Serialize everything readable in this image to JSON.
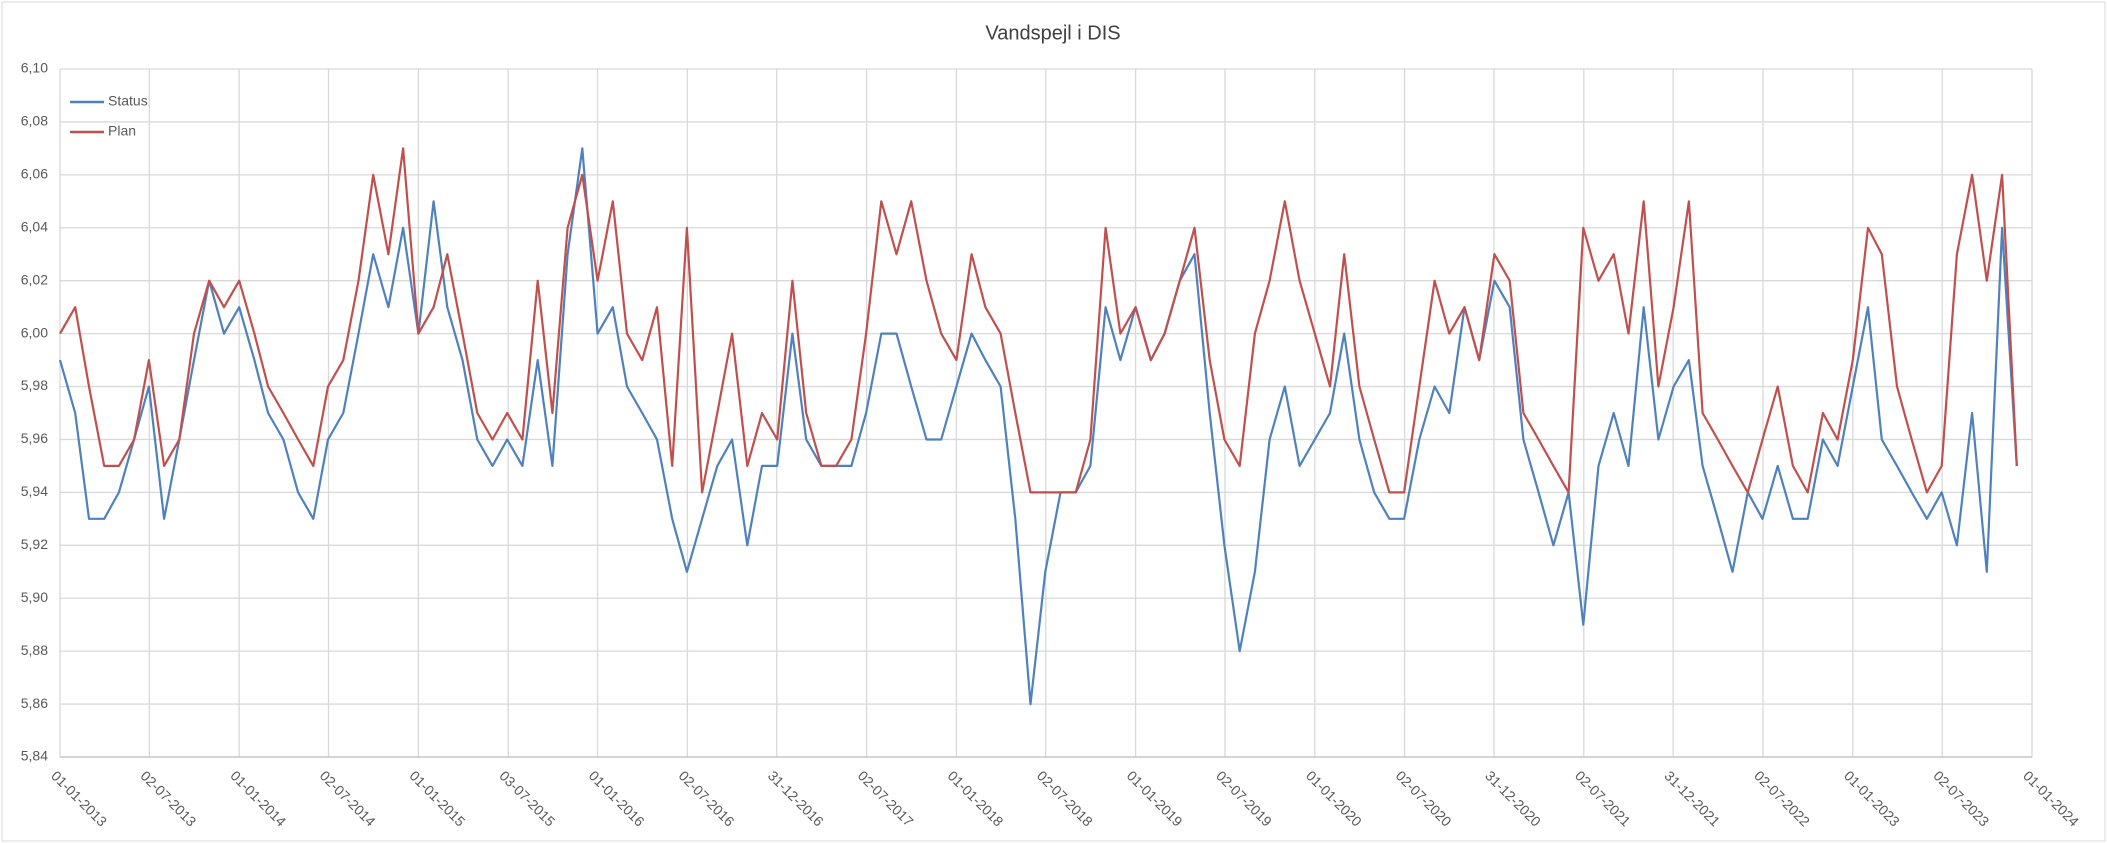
{
  "chart_data": {
    "type": "line",
    "title": "Vandspejl  i DIS",
    "x": [
      "2013-01-01",
      "2013-02-01",
      "2013-03-01",
      "2013-04-01",
      "2013-05-01",
      "2013-06-01",
      "2013-07-01",
      "2013-08-01",
      "2013-09-01",
      "2013-10-01",
      "2013-11-01",
      "2013-12-01",
      "2014-01-01",
      "2014-02-01",
      "2014-03-01",
      "2014-04-01",
      "2014-05-01",
      "2014-06-01",
      "2014-07-01",
      "2014-08-01",
      "2014-09-01",
      "2014-10-01",
      "2014-11-01",
      "2014-12-01",
      "2015-01-01",
      "2015-02-01",
      "2015-03-01",
      "2015-04-01",
      "2015-05-01",
      "2015-06-01",
      "2015-07-01",
      "2015-08-01",
      "2015-09-01",
      "2015-10-01",
      "2015-11-01",
      "2015-12-01",
      "2016-01-01",
      "2016-02-01",
      "2016-03-01",
      "2016-04-01",
      "2016-05-01",
      "2016-06-01",
      "2016-07-01",
      "2016-08-01",
      "2016-09-01",
      "2016-10-01",
      "2016-11-01",
      "2016-12-01",
      "2017-01-01",
      "2017-02-01",
      "2017-03-01",
      "2017-04-01",
      "2017-05-01",
      "2017-06-01",
      "2017-07-01",
      "2017-08-01",
      "2017-09-01",
      "2017-10-01",
      "2017-11-01",
      "2017-12-01",
      "2018-01-01",
      "2018-02-01",
      "2018-03-01",
      "2018-04-01",
      "2018-05-01",
      "2018-06-01",
      "2018-07-01",
      "2018-08-01",
      "2018-09-01",
      "2018-10-01",
      "2018-11-01",
      "2018-12-01",
      "2019-01-01",
      "2019-02-01",
      "2019-03-01",
      "2019-04-01",
      "2019-05-01",
      "2019-06-01",
      "2019-07-01",
      "2019-08-01",
      "2019-09-01",
      "2019-10-01",
      "2019-11-01",
      "2019-12-01",
      "2020-01-01",
      "2020-02-01",
      "2020-03-01",
      "2020-04-01",
      "2020-05-01",
      "2020-06-01",
      "2020-07-01",
      "2020-08-01",
      "2020-09-01",
      "2020-10-01",
      "2020-11-01",
      "2020-12-01",
      "2021-01-01",
      "2021-02-01",
      "2021-03-01",
      "2021-04-01",
      "2021-05-01",
      "2021-06-01",
      "2021-07-01",
      "2021-08-01",
      "2021-09-01",
      "2021-10-01",
      "2021-11-01",
      "2021-12-01",
      "2022-01-01",
      "2022-02-01",
      "2022-03-01",
      "2022-04-01",
      "2022-05-01",
      "2022-06-01",
      "2022-07-01",
      "2022-08-01",
      "2022-09-01",
      "2022-10-01",
      "2022-11-01",
      "2022-12-01",
      "2023-01-01",
      "2023-02-01",
      "2023-03-01",
      "2023-04-01",
      "2023-05-01",
      "2023-06-01",
      "2023-07-01",
      "2023-08-01",
      "2023-09-01",
      "2023-10-01",
      "2023-11-01",
      "2023-12-01"
    ],
    "series": [
      {
        "name": "Status",
        "color": "#4f81bd",
        "values": [
          5.99,
          5.97,
          5.93,
          5.93,
          5.94,
          5.96,
          5.98,
          5.93,
          5.96,
          5.99,
          6.02,
          6.0,
          6.01,
          5.99,
          5.97,
          5.96,
          5.94,
          5.93,
          5.96,
          5.97,
          6.0,
          6.03,
          6.01,
          6.04,
          6.0,
          6.05,
          6.01,
          5.99,
          5.96,
          5.95,
          5.96,
          5.95,
          5.99,
          5.95,
          6.03,
          6.07,
          6.0,
          6.01,
          5.98,
          5.97,
          5.96,
          5.93,
          5.91,
          5.93,
          5.95,
          5.96,
          5.92,
          5.95,
          5.95,
          6.0,
          5.96,
          5.95,
          5.95,
          5.95,
          5.97,
          6.0,
          6.0,
          5.98,
          5.96,
          5.96,
          5.98,
          6.0,
          5.99,
          5.98,
          5.93,
          5.86,
          5.91,
          5.94,
          5.94,
          5.95,
          6.01,
          5.99,
          6.01,
          5.99,
          6.0,
          6.02,
          6.03,
          5.97,
          5.92,
          5.88,
          5.91,
          5.96,
          5.98,
          5.95,
          5.96,
          5.97,
          6.0,
          5.96,
          5.94,
          5.93,
          5.93,
          5.96,
          5.98,
          5.97,
          6.01,
          5.99,
          6.02,
          6.01,
          5.96,
          5.94,
          5.92,
          5.94,
          5.89,
          5.95,
          5.97,
          5.95,
          6.01,
          5.96,
          5.98,
          5.99,
          5.95,
          5.93,
          5.91,
          5.94,
          5.93,
          5.95,
          5.93,
          5.93,
          5.96,
          5.95,
          5.98,
          6.01,
          5.96,
          5.95,
          5.94,
          5.93,
          5.94,
          5.92,
          5.97,
          5.91,
          6.04,
          5.95
        ]
      },
      {
        "name": "Plan",
        "color": "#c0504d",
        "values": [
          6.0,
          6.01,
          5.98,
          5.95,
          5.95,
          5.96,
          5.99,
          5.95,
          5.96,
          6.0,
          6.02,
          6.01,
          6.02,
          6.0,
          5.98,
          5.97,
          5.96,
          5.95,
          5.98,
          5.99,
          6.02,
          6.06,
          6.03,
          6.07,
          6.0,
          6.01,
          6.03,
          6.0,
          5.97,
          5.96,
          5.97,
          5.96,
          6.02,
          5.97,
          6.04,
          6.06,
          6.02,
          6.05,
          6.0,
          5.99,
          6.01,
          5.95,
          6.04,
          5.94,
          5.97,
          6.0,
          5.95,
          5.97,
          5.96,
          6.02,
          5.97,
          5.95,
          5.95,
          5.96,
          6.0,
          6.05,
          6.03,
          6.05,
          6.02,
          6.0,
          5.99,
          6.03,
          6.01,
          6.0,
          5.97,
          5.94,
          5.94,
          5.94,
          5.94,
          5.96,
          6.04,
          6.0,
          6.01,
          5.99,
          6.0,
          6.02,
          6.04,
          5.99,
          5.96,
          5.95,
          6.0,
          6.02,
          6.05,
          6.02,
          6.0,
          5.98,
          6.03,
          5.98,
          5.96,
          5.94,
          5.94,
          5.98,
          6.02,
          6.0,
          6.01,
          5.99,
          6.03,
          6.02,
          5.97,
          5.96,
          5.95,
          5.94,
          6.04,
          6.02,
          6.03,
          6.0,
          6.05,
          5.98,
          6.01,
          6.05,
          5.97,
          5.96,
          5.95,
          5.94,
          5.96,
          5.98,
          5.95,
          5.94,
          5.97,
          5.96,
          5.99,
          6.04,
          6.03,
          5.98,
          5.96,
          5.94,
          5.95,
          6.03,
          6.06,
          6.02,
          6.06,
          5.95
        ]
      }
    ],
    "xlim": [
      "2013-01-01",
      "2024-01-01"
    ],
    "xticks": [
      {
        "value": "2013-01-01",
        "label": "01-01-2013"
      },
      {
        "value": "2013-07-02",
        "label": "02-07-2013"
      },
      {
        "value": "2014-01-01",
        "label": "01-01-2014"
      },
      {
        "value": "2014-07-02",
        "label": "02-07-2014"
      },
      {
        "value": "2015-01-01",
        "label": "01-01-2015"
      },
      {
        "value": "2015-07-03",
        "label": "03-07-2015"
      },
      {
        "value": "2016-01-01",
        "label": "01-01-2016"
      },
      {
        "value": "2016-07-02",
        "label": "02-07-2016"
      },
      {
        "value": "2016-12-31",
        "label": "31-12-2016"
      },
      {
        "value": "2017-07-02",
        "label": "02-07-2017"
      },
      {
        "value": "2018-01-01",
        "label": "01-01-2018"
      },
      {
        "value": "2018-07-02",
        "label": "02-07-2018"
      },
      {
        "value": "2019-01-01",
        "label": "01-01-2019"
      },
      {
        "value": "2019-07-02",
        "label": "02-07-2019"
      },
      {
        "value": "2020-01-01",
        "label": "01-01-2020"
      },
      {
        "value": "2020-07-02",
        "label": "02-07-2020"
      },
      {
        "value": "2020-12-31",
        "label": "31-12-2020"
      },
      {
        "value": "2021-07-02",
        "label": "02-07-2021"
      },
      {
        "value": "2021-12-31",
        "label": "31-12-2021"
      },
      {
        "value": "2022-07-02",
        "label": "02-07-2022"
      },
      {
        "value": "2023-01-01",
        "label": "01-01-2023"
      },
      {
        "value": "2023-07-02",
        "label": "02-07-2023"
      },
      {
        "value": "2024-01-01",
        "label": "01-01-2024"
      }
    ],
    "ylim": [
      5.84,
      6.1
    ],
    "yticks": [
      {
        "value": 5.84,
        "label": "5,84"
      },
      {
        "value": 5.86,
        "label": "5,86"
      },
      {
        "value": 5.88,
        "label": "5,88"
      },
      {
        "value": 5.9,
        "label": "5,90"
      },
      {
        "value": 5.92,
        "label": "5,92"
      },
      {
        "value": 5.94,
        "label": "5,94"
      },
      {
        "value": 5.96,
        "label": "5,96"
      },
      {
        "value": 5.98,
        "label": "5,98"
      },
      {
        "value": 6.0,
        "label": "6,00"
      },
      {
        "value": 6.02,
        "label": "6,02"
      },
      {
        "value": 6.04,
        "label": "6,04"
      },
      {
        "value": 6.06,
        "label": "6,06"
      },
      {
        "value": 6.08,
        "label": "6,08"
      },
      {
        "value": 6.1,
        "label": "6,10"
      }
    ],
    "grid": true,
    "legend": "top-left"
  }
}
